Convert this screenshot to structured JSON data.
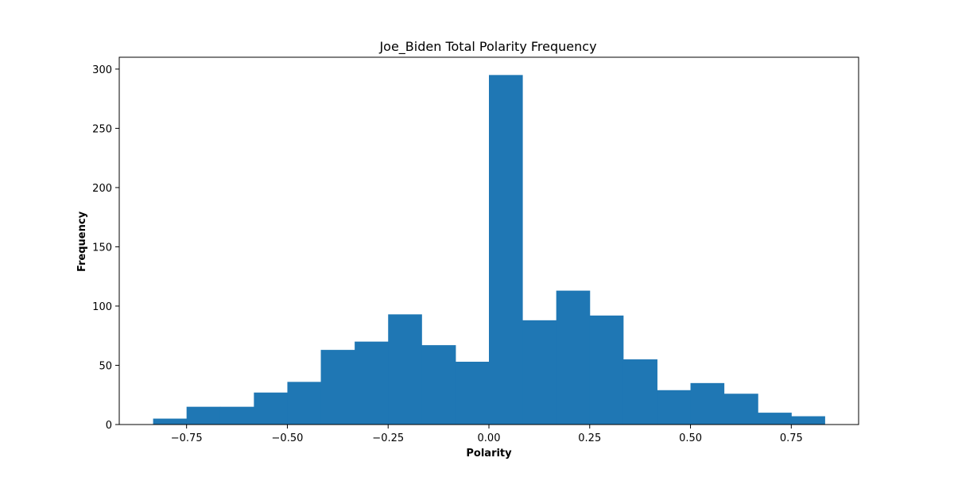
{
  "chart_data": {
    "type": "bar",
    "title": "Joe_Biden Total Polarity Frequency",
    "xlabel": "Polarity",
    "ylabel": "Frequency",
    "bin_edges": [
      -0.833,
      -0.75,
      -0.667,
      -0.583,
      -0.5,
      -0.417,
      -0.333,
      -0.25,
      -0.167,
      -0.083,
      0.0,
      0.083,
      0.167,
      0.25,
      0.333,
      0.417,
      0.5,
      0.583,
      0.667,
      0.75,
      0.833
    ],
    "values": [
      5,
      15,
      15,
      27,
      36,
      63,
      70,
      93,
      67,
      53,
      295,
      88,
      113,
      92,
      55,
      29,
      35,
      26,
      10,
      7
    ],
    "xlim": [
      -0.917,
      0.917
    ],
    "ylim": [
      0,
      310
    ],
    "xticks": [
      -0.75,
      -0.5,
      -0.25,
      0.0,
      0.25,
      0.5,
      0.75
    ],
    "xtick_labels": [
      "−0.75",
      "−0.50",
      "−0.25",
      "0.00",
      "0.25",
      "0.50",
      "0.75"
    ],
    "yticks": [
      0,
      50,
      100,
      150,
      200,
      250,
      300
    ],
    "ytick_labels": [
      "0",
      "50",
      "100",
      "150",
      "200",
      "250",
      "300"
    ],
    "bar_color": "#1f77b4",
    "grid": false,
    "legend": "none"
  }
}
